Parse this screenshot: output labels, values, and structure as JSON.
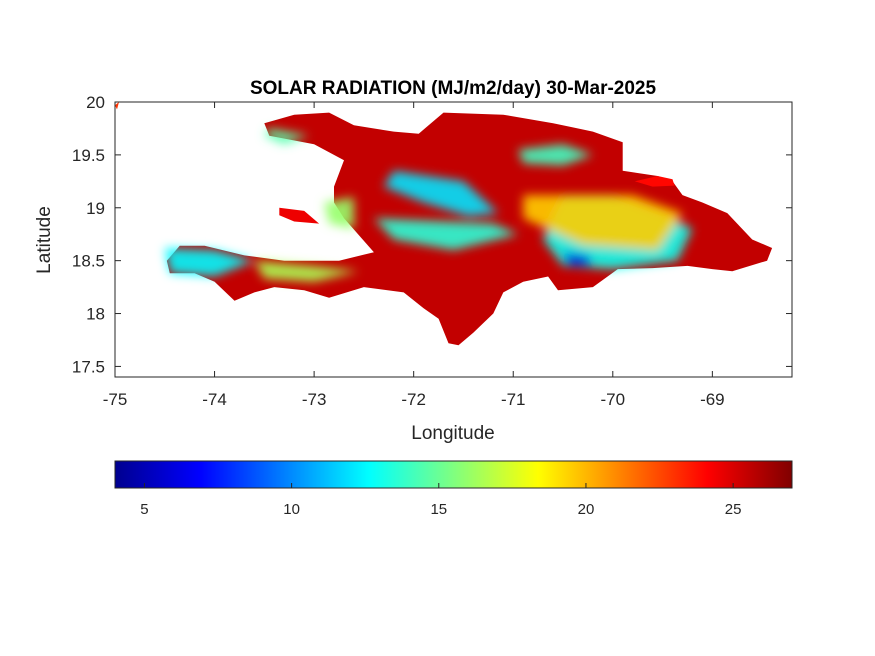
{
  "chart_data": {
    "type": "heatmap",
    "title": "SOLAR RADIATION (MJ/m2/day) 30-Mar-2025",
    "xlabel": "Longitude",
    "ylabel": "Latitude",
    "xlim": [
      -75,
      -68.2
    ],
    "ylim": [
      17.4,
      20
    ],
    "xticks": [
      "-75",
      "-74",
      "-73",
      "-72",
      "-71",
      "-70",
      "-69"
    ],
    "yticks": [
      "17.5",
      "18",
      "18.5",
      "19",
      "19.5",
      "20"
    ],
    "colorbar": {
      "colormap": "jet",
      "range": [
        4,
        27
      ],
      "ticks": [
        "5",
        "10",
        "15",
        "20",
        "25"
      ],
      "orientation": "horizontal",
      "placement": "below"
    },
    "grid": false
  },
  "regions": [
    {
      "kind": "land",
      "value": 25.5,
      "poly": [
        [
          -71.7,
          19.9
        ],
        [
          -71.1,
          19.88
        ],
        [
          -70.6,
          19.8
        ],
        [
          -70.2,
          19.72
        ],
        [
          -69.9,
          19.62
        ],
        [
          -69.9,
          19.35
        ],
        [
          -69.55,
          19.3
        ],
        [
          -69.4,
          19.25
        ],
        [
          -69.3,
          19.12
        ],
        [
          -69.1,
          19.05
        ],
        [
          -68.85,
          18.95
        ],
        [
          -68.6,
          18.7
        ],
        [
          -68.4,
          18.62
        ],
        [
          -68.45,
          18.5
        ],
        [
          -68.8,
          18.4
        ],
        [
          -69.0,
          18.42
        ],
        [
          -69.25,
          18.45
        ],
        [
          -69.6,
          18.43
        ],
        [
          -69.95,
          18.42
        ],
        [
          -70.2,
          18.25
        ],
        [
          -70.55,
          18.22
        ],
        [
          -70.65,
          18.35
        ],
        [
          -70.9,
          18.3
        ],
        [
          -71.1,
          18.2
        ],
        [
          -71.2,
          18.0
        ],
        [
          -71.4,
          17.82
        ],
        [
          -71.55,
          17.7
        ],
        [
          -71.65,
          17.72
        ],
        [
          -71.75,
          17.95
        ],
        [
          -71.9,
          18.05
        ],
        [
          -72.1,
          18.2
        ],
        [
          -72.5,
          18.25
        ],
        [
          -72.85,
          18.15
        ],
        [
          -73.1,
          18.22
        ],
        [
          -73.4,
          18.25
        ],
        [
          -73.6,
          18.2
        ],
        [
          -73.8,
          18.12
        ],
        [
          -74.0,
          18.3
        ],
        [
          -74.2,
          18.38
        ],
        [
          -74.45,
          18.38
        ],
        [
          -74.48,
          18.5
        ],
        [
          -74.35,
          18.64
        ],
        [
          -74.1,
          18.64
        ],
        [
          -73.7,
          18.55
        ],
        [
          -73.3,
          18.5
        ],
        [
          -72.75,
          18.5
        ],
        [
          -72.4,
          18.58
        ],
        [
          -72.7,
          18.9
        ],
        [
          -72.8,
          19.05
        ],
        [
          -72.8,
          19.2
        ],
        [
          -72.7,
          19.45
        ],
        [
          -73.0,
          19.6
        ],
        [
          -73.45,
          19.68
        ],
        [
          -73.5,
          19.8
        ],
        [
          -73.2,
          19.88
        ],
        [
          -72.85,
          19.9
        ],
        [
          -72.6,
          19.78
        ],
        [
          -72.2,
          19.72
        ],
        [
          -71.95,
          19.7
        ]
      ]
    },
    {
      "kind": "land",
      "value": 24.5,
      "poly": [
        [
          -73.35,
          19.0
        ],
        [
          -73.1,
          18.97
        ],
        [
          -72.95,
          18.85
        ],
        [
          -73.2,
          18.87
        ],
        [
          -73.35,
          18.93
        ]
      ]
    },
    {
      "kind": "land",
      "value": 24.0,
      "poly": [
        [
          -69.78,
          19.25
        ],
        [
          -69.55,
          19.3
        ],
        [
          -69.4,
          19.27
        ],
        [
          -69.38,
          19.21
        ],
        [
          -69.6,
          19.2
        ]
      ]
    },
    {
      "kind": "land",
      "value": 23.0,
      "poly": [
        [
          -75.0,
          19.97
        ],
        [
          -74.96,
          20.0
        ],
        [
          -74.98,
          19.93
        ]
      ]
    },
    {
      "kind": "patch",
      "value": 13.0,
      "poly": [
        [
          -70.5,
          19.12
        ],
        [
          -70.0,
          19.12
        ],
        [
          -69.5,
          18.95
        ],
        [
          -69.2,
          18.8
        ],
        [
          -69.35,
          18.5
        ],
        [
          -70.0,
          18.42
        ],
        [
          -70.5,
          18.45
        ],
        [
          -70.7,
          18.7
        ],
        [
          -70.6,
          18.95
        ]
      ]
    },
    {
      "kind": "patch",
      "value": 6.0,
      "poly": [
        [
          -70.5,
          18.58
        ],
        [
          -70.25,
          18.55
        ],
        [
          -70.2,
          18.45
        ],
        [
          -70.45,
          18.45
        ]
      ]
    },
    {
      "kind": "patch",
      "value": 12.0,
      "poly": [
        [
          -72.2,
          19.35
        ],
        [
          -71.5,
          19.25
        ],
        [
          -71.15,
          18.95
        ],
        [
          -71.45,
          18.92
        ],
        [
          -71.9,
          19.05
        ],
        [
          -72.3,
          19.2
        ]
      ]
    },
    {
      "kind": "patch",
      "value": 16.0,
      "poly": [
        [
          -72.9,
          19.05
        ],
        [
          -72.6,
          19.1
        ],
        [
          -72.6,
          18.8
        ],
        [
          -72.85,
          18.85
        ]
      ]
    },
    {
      "kind": "patch",
      "value": 13.5,
      "poly": [
        [
          -72.4,
          18.9
        ],
        [
          -71.2,
          18.85
        ],
        [
          -70.95,
          18.75
        ],
        [
          -71.6,
          18.6
        ],
        [
          -72.2,
          18.7
        ]
      ]
    },
    {
      "kind": "patch",
      "value": 12.5,
      "poly": [
        [
          -74.5,
          18.62
        ],
        [
          -74.0,
          18.6
        ],
        [
          -73.6,
          18.5
        ],
        [
          -74.0,
          18.35
        ],
        [
          -74.45,
          18.38
        ]
      ]
    },
    {
      "kind": "patch",
      "value": 16.5,
      "poly": [
        [
          -73.6,
          18.5
        ],
        [
          -73.0,
          18.45
        ],
        [
          -72.55,
          18.4
        ],
        [
          -73.0,
          18.3
        ],
        [
          -73.5,
          18.33
        ]
      ]
    },
    {
      "kind": "patch",
      "value": 14.5,
      "poly": [
        [
          -73.45,
          19.75
        ],
        [
          -73.05,
          19.68
        ],
        [
          -73.3,
          19.6
        ],
        [
          -73.5,
          19.68
        ]
      ]
    },
    {
      "kind": "patch",
      "value": 14.0,
      "poly": [
        [
          -70.95,
          19.55
        ],
        [
          -70.5,
          19.6
        ],
        [
          -70.2,
          19.5
        ],
        [
          -70.5,
          19.4
        ],
        [
          -70.9,
          19.42
        ]
      ]
    },
    {
      "kind": "patch",
      "value": 19.5,
      "poly": [
        [
          -70.9,
          19.12
        ],
        [
          -69.8,
          19.12
        ],
        [
          -69.3,
          18.95
        ],
        [
          -69.55,
          18.6
        ],
        [
          -70.3,
          18.65
        ],
        [
          -70.9,
          18.9
        ]
      ]
    }
  ]
}
